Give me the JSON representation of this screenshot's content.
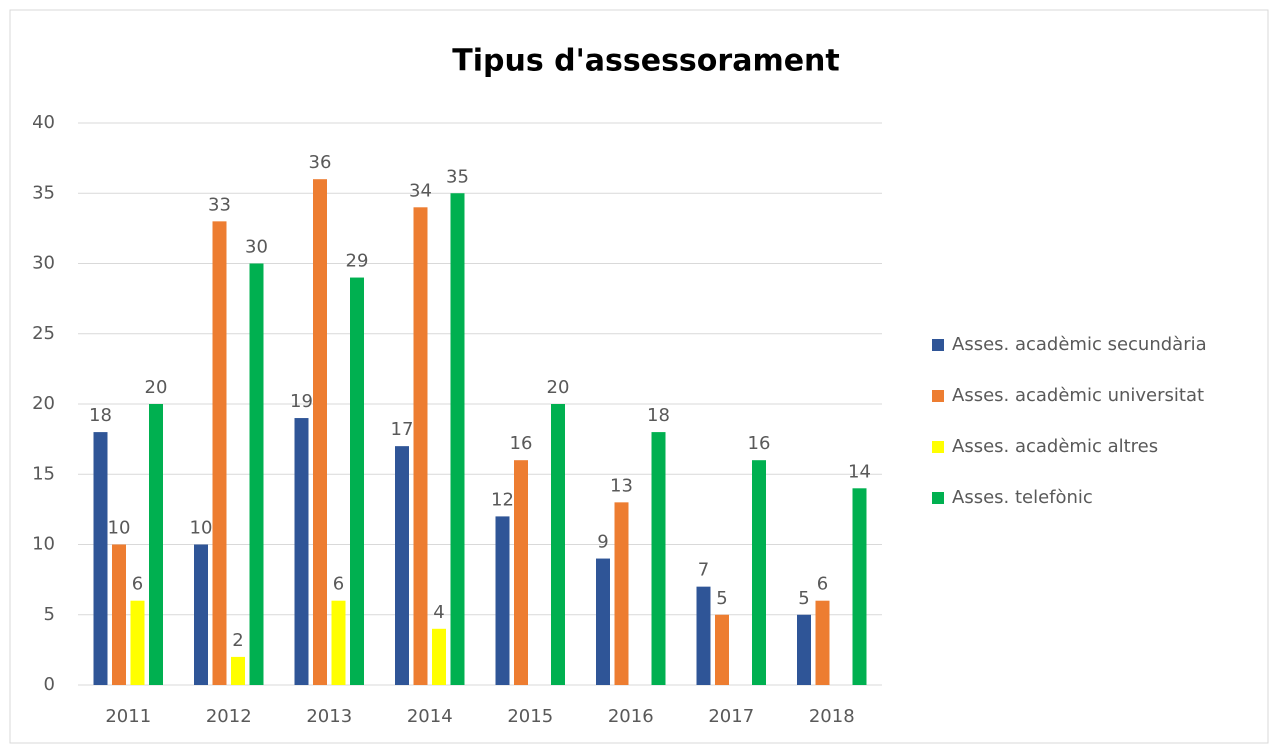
{
  "chart_data": {
    "type": "bar",
    "title": "Tipus d'assessorament",
    "categories": [
      "2011",
      "2012",
      "2013",
      "2014",
      "2015",
      "2016",
      "2017",
      "2018"
    ],
    "series": [
      {
        "name": "Asses. acadèmic secundària",
        "color": "#2f5597",
        "values": [
          18,
          10,
          19,
          17,
          12,
          9,
          7,
          5
        ]
      },
      {
        "name": "Asses. acadèmic universitat",
        "color": "#ed7d31",
        "values": [
          10,
          33,
          36,
          34,
          16,
          13,
          5,
          6
        ]
      },
      {
        "name": "Asses. acadèmic altres",
        "color": "#ffff00",
        "values": [
          6,
          2,
          6,
          4,
          null,
          null,
          null,
          null
        ]
      },
      {
        "name": "Asses. telefònic",
        "color": "#00b050",
        "values": [
          20,
          30,
          29,
          35,
          20,
          18,
          16,
          14
        ]
      }
    ],
    "ylim": [
      0,
      40
    ],
    "yticks": [
      0,
      5,
      10,
      15,
      20,
      25,
      30,
      35,
      40
    ],
    "grid": true,
    "legend": "right"
  }
}
